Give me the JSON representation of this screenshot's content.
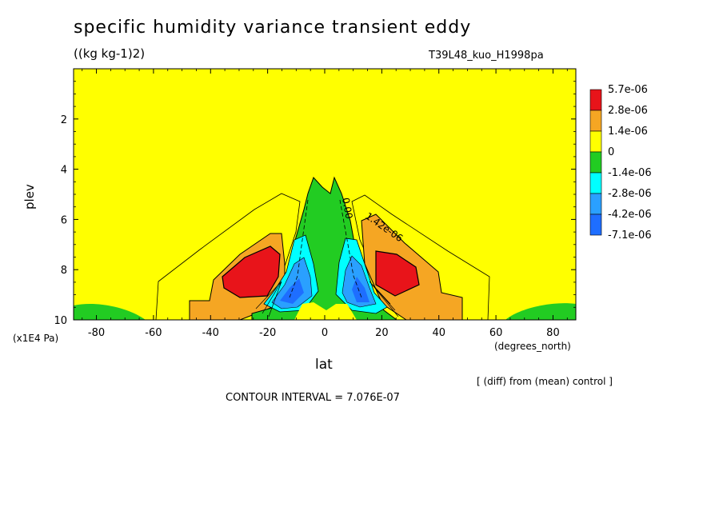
{
  "chart_data": {
    "type": "heatmap",
    "title": "specific humidity variance transient eddy",
    "units": "((kg kg-1)2)",
    "run_name": "T39L48_kuo_H1998pa",
    "xlabel": "lat",
    "xunits": "(degrees_north)",
    "ylabel": "plev",
    "yunits": "(x1E4 Pa)",
    "xlim": [
      -88,
      88
    ],
    "ylim": [
      10,
      0
    ],
    "x_ticks": [
      "-80",
      "-60",
      "-40",
      "-20",
      "0",
      "20",
      "40",
      "60",
      "80"
    ],
    "x_tick_values": [
      -80,
      -60,
      -40,
      -20,
      0,
      20,
      40,
      60,
      80
    ],
    "y_ticks": [
      "2",
      "4",
      "6",
      "8",
      "10"
    ],
    "y_tick_values": [
      2,
      4,
      6,
      8,
      10
    ],
    "note": "[ (diff) from (mean) control ]",
    "contour_interval": "CONTOUR INTERVAL = 7.076E-07",
    "contour_labels": [
      "0.00",
      "1.42e-06"
    ],
    "legend": {
      "labels": [
        "5.7e-06",
        "2.8e-06",
        "1.4e-06",
        "0",
        "-1.4e-06",
        "-2.8e-06",
        "-4.2e-06",
        "-7.1e-06"
      ],
      "colors": [
        "#e8141a",
        "#f5a623",
        "#ffff00",
        "#22cc22",
        "#00ffff",
        "#2aa0ff",
        "#1e6eff"
      ]
    },
    "colors": {
      "background_field": "#ffff00",
      "positive_1": "#f5a623",
      "positive_2": "#e8141a",
      "negative_1": "#22cc22",
      "negative_2": "#00ffff",
      "negative_3": "#2aa0ff",
      "negative_4": "#1e6eff"
    }
  }
}
